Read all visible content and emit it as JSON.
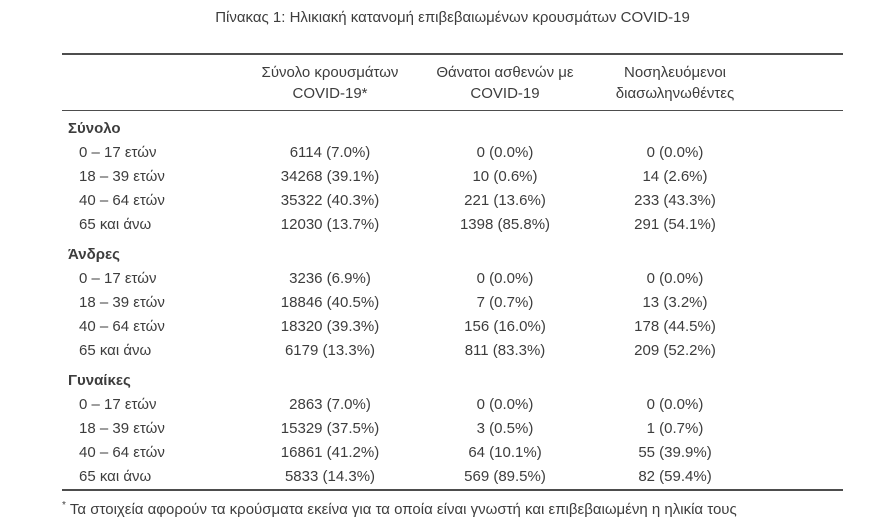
{
  "title": "Πίνακας 1: Ηλικιακή κατανομή επιβεβαιωμένων κρουσμάτων COVID-19",
  "table": {
    "columns": [
      {
        "label": "Σύνολο κρουσμάτων\nCOVID-19*"
      },
      {
        "label": "Θάνατοι ασθενών με\nCOVID-19"
      },
      {
        "label": "Νοσηλευόμενοι\nδιασωληνωθέντες"
      }
    ],
    "sections": [
      {
        "name": "Σύνολο",
        "rows": [
          {
            "label": "0 – 17 ετών",
            "values": [
              "6114 (7.0%)",
              "0 (0.0%)",
              "0 (0.0%)"
            ]
          },
          {
            "label": "18 – 39 ετών",
            "values": [
              "34268 (39.1%)",
              "10 (0.6%)",
              "14 (2.6%)"
            ]
          },
          {
            "label": "40 – 64 ετών",
            "values": [
              "35322 (40.3%)",
              "221 (13.6%)",
              "233 (43.3%)"
            ]
          },
          {
            "label": "65 και άνω",
            "values": [
              "12030 (13.7%)",
              "1398 (85.8%)",
              "291 (54.1%)"
            ]
          }
        ]
      },
      {
        "name": "Άνδρες",
        "rows": [
          {
            "label": "0 – 17 ετών",
            "values": [
              "3236 (6.9%)",
              "0 (0.0%)",
              "0 (0.0%)"
            ]
          },
          {
            "label": "18 – 39 ετών",
            "values": [
              "18846 (40.5%)",
              "7 (0.7%)",
              "13 (3.2%)"
            ]
          },
          {
            "label": "40 – 64 ετών",
            "values": [
              "18320 (39.3%)",
              "156 (16.0%)",
              "178 (44.5%)"
            ]
          },
          {
            "label": "65 και άνω",
            "values": [
              "6179 (13.3%)",
              "811 (83.3%)",
              "209 (52.2%)"
            ]
          }
        ]
      },
      {
        "name": "Γυναίκες",
        "rows": [
          {
            "label": "0 – 17 ετών",
            "values": [
              "2863 (7.0%)",
              "0 (0.0%)",
              "0 (0.0%)"
            ]
          },
          {
            "label": "18 – 39 ετών",
            "values": [
              "15329 (37.5%)",
              "3 (0.5%)",
              "1 (0.7%)"
            ]
          },
          {
            "label": "40 – 64 ετών",
            "values": [
              "16861 (41.2%)",
              "64 (10.1%)",
              "55 (39.9%)"
            ]
          },
          {
            "label": "65 και άνω",
            "values": [
              "5833 (14.3%)",
              "569 (89.5%)",
              "82 (59.4%)"
            ]
          }
        ]
      }
    ]
  },
  "footnote": {
    "marker": "*",
    "text": "Τα στοιχεία αφορούν τα κρούσματα εκείνα για τα οποία είναι γνωστή και επιβεβαιωμένη η ηλικία τους"
  },
  "colors": {
    "text": "#3d3d3d",
    "border": "#4d4d4d",
    "background": "#ffffff"
  }
}
